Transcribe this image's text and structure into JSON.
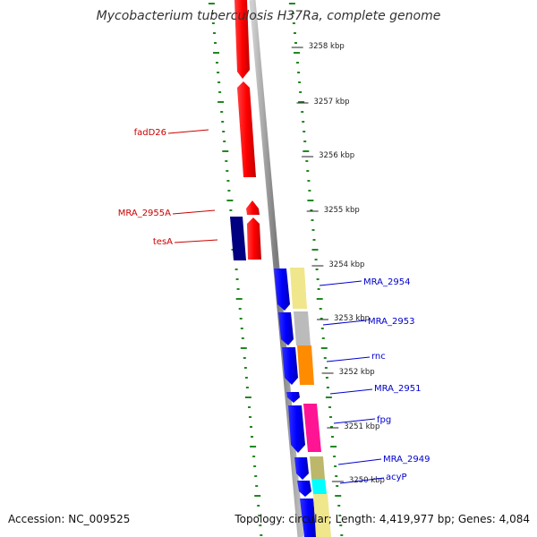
{
  "title": "Mycobacterium tuberculosis H37Ra, complete genome",
  "accession_label": "Accession: NC_009525",
  "stats_label": "Topology: circular; Length: 4,419,977 bp; Genes: 4,084",
  "scale_labels": [
    "3258 kbp",
    "3257 kbp",
    "3256 kbp",
    "3255 kbp",
    "3254 kbp",
    "3253 kbp",
    "3252 kbp",
    "3251 kbp",
    "3250 kbp"
  ],
  "genes": [
    {
      "label": "fadD26",
      "strand": "reverse",
      "color": "#cc0000"
    },
    {
      "label": "MRA_2955A",
      "strand": "reverse",
      "color": "#cc0000"
    },
    {
      "label": "tesA",
      "strand": "reverse",
      "color": "#cc0000"
    },
    {
      "label": "MRA_2954",
      "strand": "forward",
      "color": "#0000cc"
    },
    {
      "label": "MRA_2953",
      "strand": "forward",
      "color": "#0000cc"
    },
    {
      "label": "rnc",
      "strand": "forward",
      "color": "#0000cc"
    },
    {
      "label": "MRA_2951",
      "strand": "forward",
      "color": "#0000cc"
    },
    {
      "label": "fpg",
      "strand": "forward",
      "color": "#0000cc"
    },
    {
      "label": "MRA_2949",
      "strand": "forward",
      "color": "#0000cc"
    },
    {
      "label": "acyP",
      "strand": "forward",
      "color": "#0000cc"
    }
  ],
  "colors": {
    "forward_strand": "#ff0000",
    "reverse_strand": "#0000ff",
    "dark_feature": "#000080",
    "ticks": "#228822",
    "backbone": "#888888",
    "cog_categories": [
      "#f0e68c",
      "#bbbbbb",
      "#ff8c00",
      "#ff1493",
      "#bdb76b",
      "#00ffff"
    ]
  }
}
